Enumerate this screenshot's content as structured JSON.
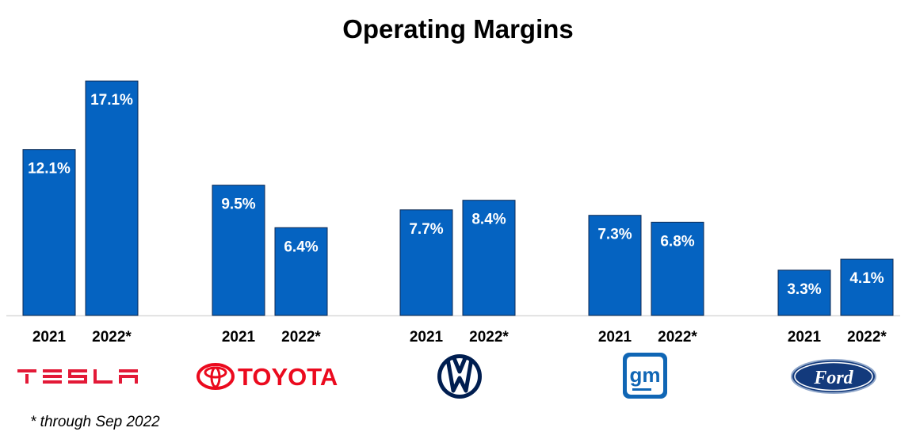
{
  "chart_data": {
    "type": "bar",
    "title": "Operating Margins",
    "footnote": "* through Sep 2022",
    "bar_color": "#0563C1",
    "label_color": "#ffffff",
    "ylim": [
      0,
      18
    ],
    "groups": [
      {
        "company": "Tesla",
        "logo_text": "TESLA",
        "logo_icon": "tesla-wordmark",
        "logo_color": "#e31937",
        "bars": [
          {
            "category": "2021",
            "value": 12.1,
            "label": "12.1%"
          },
          {
            "category": "2022*",
            "value": 17.1,
            "label": "17.1%"
          }
        ]
      },
      {
        "company": "Toyota",
        "logo_text": "TOYOTA",
        "logo_icon": "toyota-emblem",
        "logo_color": "#eb0a1e",
        "bars": [
          {
            "category": "2021",
            "value": 9.5,
            "label": "9.5%"
          },
          {
            "category": "2022*",
            "value": 6.4,
            "label": "6.4%"
          }
        ]
      },
      {
        "company": "Volkswagen",
        "logo_text": "VW",
        "logo_icon": "vw-emblem",
        "logo_color": "#001e50",
        "bars": [
          {
            "category": "2021",
            "value": 7.7,
            "label": "7.7%"
          },
          {
            "category": "2022*",
            "value": 8.4,
            "label": "8.4%"
          }
        ]
      },
      {
        "company": "GM",
        "logo_text": "gm",
        "logo_icon": "gm-emblem",
        "logo_color": "#1066b5",
        "bars": [
          {
            "category": "2021",
            "value": 7.3,
            "label": "7.3%"
          },
          {
            "category": "2022*",
            "value": 6.8,
            "label": "6.8%"
          }
        ]
      },
      {
        "company": "Ford",
        "logo_text": "Ford",
        "logo_icon": "ford-oval",
        "logo_color": "#133a7c",
        "bars": [
          {
            "category": "2021",
            "value": 3.3,
            "label": "3.3%"
          },
          {
            "category": "2022*",
            "value": 4.1,
            "label": "4.1%"
          }
        ]
      }
    ]
  }
}
